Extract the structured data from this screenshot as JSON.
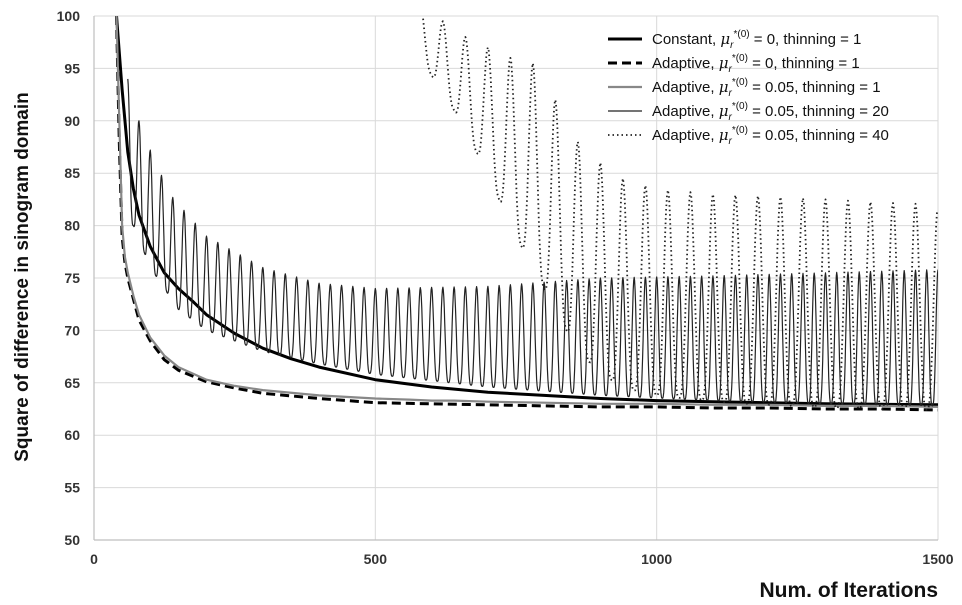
{
  "chart_data": {
    "type": "line",
    "title": "",
    "xlabel": "Num. of Iterations",
    "ylabel": "Square of difference in sinogram domain",
    "xlim": [
      0,
      1500
    ],
    "ylim": [
      50,
      100
    ],
    "xticks": [
      0,
      500,
      1000,
      1500
    ],
    "yticks": [
      50,
      55,
      60,
      65,
      70,
      75,
      80,
      85,
      90,
      95,
      100
    ],
    "grid": true,
    "legend_position": "top-right",
    "series": [
      {
        "name": "Constant, μr*(0) = 0, thinning = 1",
        "legend_prefix": "Constant,",
        "legend_suffix": "= 0, thinning = 1",
        "color": "#000000",
        "style": "solid-thick",
        "x": [
          40,
          50,
          60,
          70,
          80,
          100,
          125,
          150,
          175,
          200,
          250,
          300,
          350,
          400,
          500,
          600,
          700,
          800,
          900,
          1000,
          1100,
          1200,
          1300,
          1400,
          1500
        ],
        "y": [
          100,
          93,
          87,
          83.5,
          81,
          78,
          75.5,
          74,
          72.8,
          71.5,
          69.7,
          68.3,
          67.3,
          66.5,
          65.3,
          64.6,
          64.1,
          63.8,
          63.5,
          63.3,
          63.2,
          63.1,
          63.0,
          62.95,
          62.9
        ]
      },
      {
        "name": "Adaptive, μr*(0) = 0, thinning = 1",
        "legend_prefix": "Adaptive,",
        "legend_suffix": "= 0, thinning = 1",
        "color": "#000000",
        "style": "dashed",
        "x": [
          40,
          45,
          50,
          55,
          60,
          70,
          80,
          100,
          125,
          150,
          200,
          250,
          300,
          400,
          500,
          600,
          700,
          800,
          900,
          1000,
          1100,
          1200,
          1300,
          1400,
          1500
        ],
        "y": [
          100,
          88,
          79,
          76.5,
          75,
          73,
          71,
          69,
          67.2,
          66.2,
          65.1,
          64.5,
          64.0,
          63.5,
          63.1,
          63.0,
          62.9,
          62.8,
          62.7,
          62.7,
          62.6,
          62.6,
          62.5,
          62.5,
          62.4
        ]
      },
      {
        "name": "Adaptive, μr*(0) = 0.05, thinning = 1",
        "legend_prefix": "Adaptive,",
        "legend_suffix": "= 0.05, thinning = 1",
        "color": "#888888",
        "style": "solid-gray",
        "x": [
          40,
          45,
          50,
          55,
          60,
          70,
          80,
          100,
          125,
          150,
          200,
          250,
          300,
          400,
          500,
          560,
          600,
          640,
          700,
          800,
          900,
          1000,
          1100,
          1200,
          1300,
          1400,
          1500
        ],
        "y": [
          100,
          90,
          80,
          77,
          75.5,
          73.3,
          71.5,
          69.3,
          67.6,
          66.5,
          65.3,
          64.7,
          64.3,
          63.8,
          63.5,
          63.4,
          63.3,
          63.3,
          63.2,
          63.1,
          63.0,
          63.0,
          62.9,
          62.9,
          62.8,
          62.8,
          62.7
        ]
      },
      {
        "name": "Adaptive, μr*(0) = 0.05, thinning = 20",
        "legend_prefix": "Adaptive,",
        "legend_suffix": "= 0.05, thinning = 20",
        "color": "#222222",
        "style": "solid-thin",
        "period": 20,
        "peaks": [
          [
            60,
            94
          ],
          [
            85,
            89
          ],
          [
            110,
            86
          ],
          [
            135,
            83
          ],
          [
            200,
            79
          ],
          [
            300,
            76
          ],
          [
            400,
            74.5
          ],
          [
            500,
            74
          ],
          [
            700,
            74.2
          ],
          [
            900,
            75
          ],
          [
            1100,
            75.2
          ],
          [
            1300,
            75.5
          ],
          [
            1500,
            75.8
          ]
        ],
        "troughs": [
          [
            70,
            80
          ],
          [
            100,
            76
          ],
          [
            150,
            72
          ],
          [
            200,
            70
          ],
          [
            300,
            68
          ],
          [
            400,
            66.8
          ],
          [
            500,
            65.8
          ],
          [
            700,
            64.6
          ],
          [
            900,
            63.8
          ],
          [
            1100,
            63.3
          ],
          [
            1300,
            63.0
          ],
          [
            1500,
            62.8
          ]
        ]
      },
      {
        "name": "Adaptive, μr*(0) = 0.05, thinning = 40",
        "legend_prefix": "Adaptive,",
        "legend_suffix": "= 0.05, thinning = 40",
        "color": "#222222",
        "style": "dotted",
        "period": 40,
        "peaks": [
          [
            580,
            101
          ],
          [
            660,
            98
          ],
          [
            740,
            96
          ],
          [
            780,
            95.5
          ],
          [
            820,
            92
          ],
          [
            860,
            88
          ],
          [
            900,
            86
          ],
          [
            940,
            84.5
          ],
          [
            1000,
            83.5
          ],
          [
            1100,
            83
          ],
          [
            1200,
            82.8
          ],
          [
            1300,
            82.5
          ],
          [
            1400,
            82.2
          ],
          [
            1500,
            82
          ]
        ],
        "troughs": [
          [
            580,
            96
          ],
          [
            640,
            91
          ],
          [
            700,
            85
          ],
          [
            740,
            80
          ],
          [
            780,
            76
          ],
          [
            820,
            72
          ],
          [
            860,
            68
          ],
          [
            900,
            66
          ],
          [
            940,
            64.5
          ],
          [
            1000,
            63.8
          ],
          [
            1100,
            63.2
          ],
          [
            1200,
            62.9
          ],
          [
            1300,
            62.6
          ],
          [
            1500,
            62.4
          ]
        ]
      }
    ]
  },
  "legend": {
    "mu_symbol": "μ",
    "mu_sub": "r",
    "mu_sup": "*(0)"
  }
}
